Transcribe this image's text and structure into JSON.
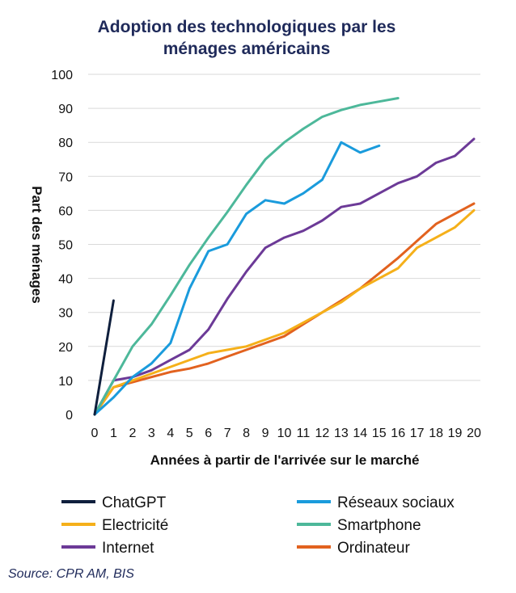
{
  "chart_data": {
    "type": "line",
    "title_lines": [
      "Adoption des technologiques par les",
      "ménages américains"
    ],
    "xlabel": "Années à partir de l'arrivée sur le marché",
    "ylabel": "Part des ménages",
    "xlim": [
      0,
      20
    ],
    "ylim": [
      0,
      100
    ],
    "x_ticks": [
      0,
      1,
      2,
      3,
      4,
      5,
      6,
      7,
      8,
      9,
      10,
      11,
      12,
      13,
      14,
      15,
      16,
      17,
      18,
      19,
      20
    ],
    "y_ticks": [
      0,
      10,
      20,
      30,
      40,
      50,
      60,
      70,
      80,
      90,
      100
    ],
    "grid": "horizontal",
    "legend_position": "bottom",
    "series": [
      {
        "name": "ChatGPT",
        "color": "#0f1f3d",
        "points": [
          [
            0,
            0
          ],
          [
            1,
            33.5
          ]
        ]
      },
      {
        "name": "Réseaux sociaux",
        "color": "#1a9bdc",
        "points": [
          [
            0,
            0
          ],
          [
            1,
            5
          ],
          [
            2,
            11
          ],
          [
            3,
            15
          ],
          [
            4,
            21
          ],
          [
            5,
            37
          ],
          [
            6,
            48
          ],
          [
            7,
            50
          ],
          [
            8,
            59
          ],
          [
            9,
            63
          ],
          [
            10,
            62
          ],
          [
            11,
            65
          ],
          [
            12,
            69
          ],
          [
            13,
            80
          ],
          [
            14,
            77
          ],
          [
            15,
            79
          ]
        ]
      },
      {
        "name": "Electricité",
        "color": "#f5b01a",
        "points": [
          [
            0,
            0
          ],
          [
            1,
            8
          ],
          [
            2,
            10
          ],
          [
            3,
            12
          ],
          [
            4,
            14
          ],
          [
            5,
            16
          ],
          [
            6,
            18
          ],
          [
            7,
            19
          ],
          [
            8,
            20
          ],
          [
            9,
            22
          ],
          [
            10,
            24
          ],
          [
            11,
            27
          ],
          [
            12,
            30
          ],
          [
            13,
            33
          ],
          [
            14,
            37
          ],
          [
            15,
            40
          ],
          [
            16,
            43
          ],
          [
            17,
            49
          ],
          [
            18,
            52
          ],
          [
            19,
            55
          ],
          [
            20,
            60
          ]
        ]
      },
      {
        "name": "Smartphone",
        "color": "#4db89a",
        "points": [
          [
            0,
            0
          ],
          [
            1,
            10
          ],
          [
            2,
            20
          ],
          [
            3,
            26.5
          ],
          [
            4,
            35
          ],
          [
            5,
            44
          ],
          [
            6,
            52
          ],
          [
            7,
            59.5
          ],
          [
            8,
            67.5
          ],
          [
            9,
            75
          ],
          [
            10,
            80
          ],
          [
            11,
            84
          ],
          [
            12,
            87.5
          ],
          [
            13,
            89.5
          ],
          [
            14,
            91
          ],
          [
            15,
            92
          ],
          [
            16,
            93
          ]
        ]
      },
      {
        "name": "Internet",
        "color": "#6c3a97",
        "points": [
          [
            0,
            0
          ],
          [
            1,
            10
          ],
          [
            2,
            11
          ],
          [
            3,
            13
          ],
          [
            4,
            16
          ],
          [
            5,
            19
          ],
          [
            6,
            25
          ],
          [
            7,
            34
          ],
          [
            8,
            42
          ],
          [
            9,
            49
          ],
          [
            10,
            52
          ],
          [
            11,
            54
          ],
          [
            12,
            57
          ],
          [
            13,
            61
          ],
          [
            14,
            62
          ],
          [
            15,
            65
          ],
          [
            16,
            68
          ],
          [
            17,
            70
          ],
          [
            18,
            74
          ],
          [
            19,
            76
          ],
          [
            20,
            81
          ]
        ]
      },
      {
        "name": "Ordinateur",
        "color": "#e2621f",
        "points": [
          [
            0,
            0
          ],
          [
            1,
            8
          ],
          [
            2,
            9.5
          ],
          [
            3,
            11
          ],
          [
            4,
            12.5
          ],
          [
            5,
            13.5
          ],
          [
            6,
            15
          ],
          [
            7,
            17
          ],
          [
            8,
            19
          ],
          [
            9,
            21
          ],
          [
            10,
            23
          ],
          [
            11,
            26.5
          ],
          [
            12,
            30
          ],
          [
            13,
            33.5
          ],
          [
            14,
            37
          ],
          [
            15,
            41.5
          ],
          [
            16,
            46
          ],
          [
            17,
            51
          ],
          [
            18,
            56
          ],
          [
            19,
            59
          ],
          [
            20,
            62
          ]
        ]
      }
    ],
    "source": "Source: CPR AM, BIS"
  }
}
